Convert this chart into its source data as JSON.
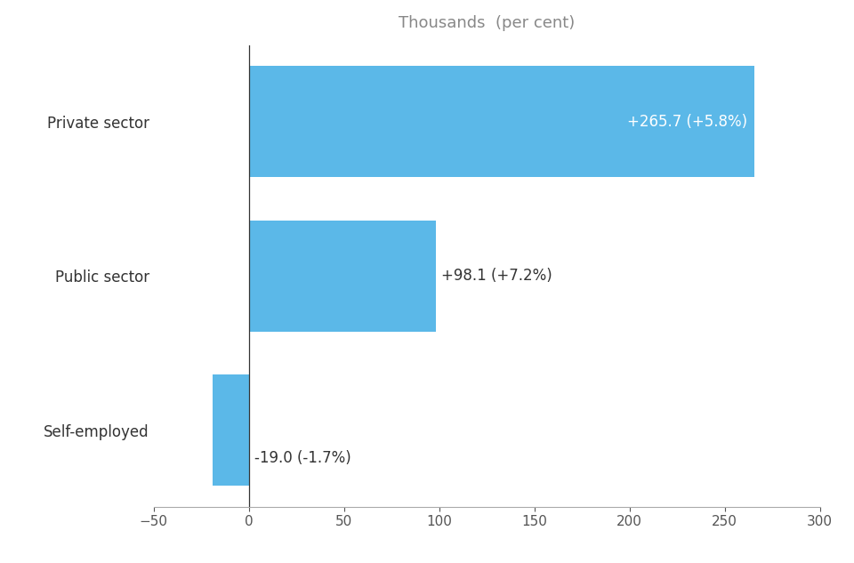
{
  "categories": [
    "Self-employed",
    "Public sector",
    "Private sector"
  ],
  "values": [
    -19.0,
    98.1,
    265.7
  ],
  "labels": [
    "-19.0 (-1.7%)",
    "+98.1 (+7.2%)",
    "+265.7 (+5.8%)"
  ],
  "bar_color": "#5BB8E8",
  "label_color_inside": "#ffffff",
  "label_color_outside": "#333333",
  "title": "Thousands  (per cent)",
  "title_color": "#888888",
  "title_fontsize": 13,
  "xlim": [
    -50,
    300
  ],
  "xticks": [
    -50,
    0,
    50,
    100,
    150,
    200,
    250,
    300
  ],
  "background_color": "#ffffff",
  "bar_height": 0.72,
  "label_fontsize": 12,
  "ytick_fontsize": 12,
  "xtick_fontsize": 11
}
